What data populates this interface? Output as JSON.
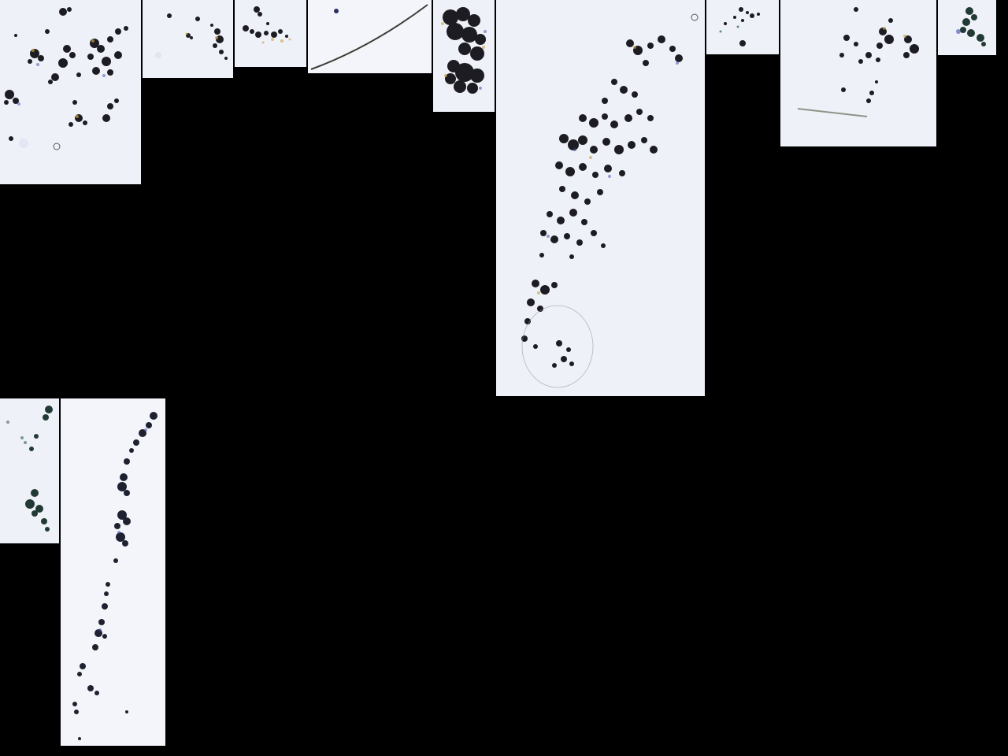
{
  "page": {
    "background_color": "#000000"
  },
  "mosaic": {
    "tile_count": 12,
    "tile_background_color": "#f1f4fb",
    "particle_color": "#1c1c22",
    "fringe_colors": [
      "#c8a040",
      "#3a46a8",
      "#2f5f52"
    ]
  }
}
